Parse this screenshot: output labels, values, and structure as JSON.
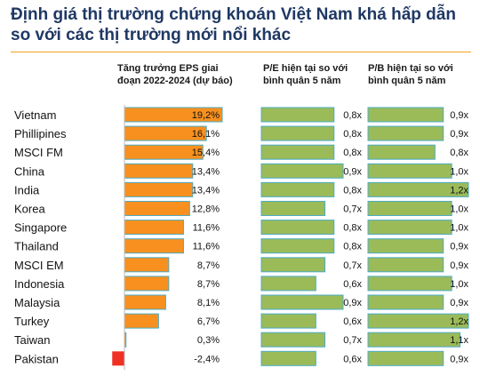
{
  "title": "Định giá thị trường chứng khoán Việt Nam khá hấp dẫn so với các thị trường mới nổi khác",
  "chart_data": [
    {
      "type": "bar",
      "title": "Tăng trưởng EPS giai đoạn 2022-2024 (dự báo)",
      "categories": [
        "Vietnam",
        "Phillipines",
        "MSCI FM",
        "China",
        "India",
        "Korea",
        "Singapore",
        "Thailand",
        "MSCI EM",
        "Indonesia",
        "Malaysia",
        "Turkey",
        "Taiwan",
        "Pakistan"
      ],
      "values": [
        19.2,
        16.1,
        15.4,
        13.4,
        13.4,
        12.8,
        11.6,
        11.6,
        8.7,
        8.7,
        8.1,
        6.7,
        0.3,
        -2.4
      ],
      "labels": [
        "19,2%",
        "16,1%",
        "15,4%",
        "13,4%",
        "13,4%",
        "12,8%",
        "11,6%",
        "11,6%",
        "8,7%",
        "8,7%",
        "8,1%",
        "6,7%",
        "0,3%",
        "-2,4%"
      ],
      "colors": {
        "positive": "#f7901e",
        "negative": "#ee3124"
      }
    },
    {
      "type": "bar",
      "title": "P/E hiện tại so với bình quân 5 năm",
      "categories": [
        "Vietnam",
        "Phillipines",
        "MSCI FM",
        "China",
        "India",
        "Korea",
        "Singapore",
        "Thailand",
        "MSCI EM",
        "Indonesia",
        "Malaysia",
        "Turkey",
        "Taiwan",
        "Pakistan"
      ],
      "values": [
        0.8,
        0.8,
        0.8,
        0.9,
        0.8,
        0.7,
        0.8,
        0.8,
        0.7,
        0.6,
        0.9,
        0.6,
        0.7,
        0.6
      ],
      "labels": [
        "0,8x",
        "0,8x",
        "0,8x",
        "0,9x",
        "0,8x",
        "0,7x",
        "0,8x",
        "0,8x",
        "0,7x",
        "0,6x",
        "0,9x",
        "0,6x",
        "0,7x",
        "0,6x"
      ],
      "colors": {
        "fill": "#9bbb59",
        "stroke": "#4bacc6"
      }
    },
    {
      "type": "bar",
      "title": "P/B hiện tại so với bình quân 5 năm",
      "categories": [
        "Vietnam",
        "Phillipines",
        "MSCI FM",
        "China",
        "India",
        "Korea",
        "Singapore",
        "Thailand",
        "MSCI EM",
        "Indonesia",
        "Malaysia",
        "Turkey",
        "Taiwan",
        "Pakistan"
      ],
      "values": [
        0.9,
        0.9,
        0.8,
        1.0,
        1.2,
        1.0,
        1.0,
        0.9,
        0.9,
        1.0,
        0.9,
        1.2,
        1.1,
        0.9
      ],
      "labels": [
        "0,9x",
        "0,9x",
        "0,8x",
        "1,0x",
        "1,2x",
        "1,0x",
        "1,0x",
        "0,9x",
        "0,9x",
        "1,0x",
        "0,9x",
        "1,2x",
        "1,1x",
        "0,9x"
      ],
      "colors": {
        "fill": "#9bbb59",
        "stroke": "#4bacc6"
      }
    }
  ]
}
